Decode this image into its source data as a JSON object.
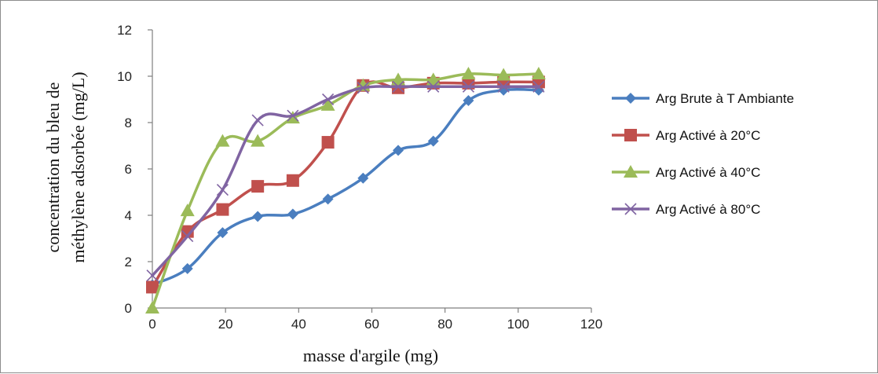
{
  "chart_data": {
    "type": "line",
    "title": "",
    "xlabel": "masse d'argile (mg)",
    "ylabel_line1": "concentration du bleu de",
    "ylabel_line2": "méthylène adsorbée (mg/L)",
    "xlim": [
      0,
      120
    ],
    "ylim": [
      0,
      12
    ],
    "xticks": [
      "0",
      "20",
      "40",
      "60",
      "80",
      "100",
      "120"
    ],
    "yticks": [
      "0",
      "2",
      "4",
      "6",
      "8",
      "10",
      "12"
    ],
    "grid": false,
    "smooth": true,
    "legend_position": "right",
    "series": [
      {
        "name": "Arg Brute à T Ambiante",
        "color": "#4a7ebf",
        "marker": "diamond",
        "x": [
          0,
          9.6,
          19.2,
          28.8,
          38.4,
          48,
          57.6,
          67.2,
          76.8,
          86.4,
          96,
          105.6
        ],
        "y": [
          1.0,
          1.7,
          3.25,
          3.95,
          4.05,
          4.7,
          5.6,
          6.8,
          7.2,
          8.95,
          9.4,
          9.4
        ]
      },
      {
        "name": "Arg Activé à 20°C",
        "color": "#c0504d",
        "marker": "square",
        "x": [
          0,
          9.6,
          19.2,
          28.8,
          38.4,
          48,
          57.6,
          67.2,
          76.8,
          86.4,
          96,
          105.6
        ],
        "y": [
          0.9,
          3.3,
          4.25,
          5.25,
          5.5,
          7.15,
          9.6,
          9.5,
          9.7,
          9.7,
          9.75,
          9.75
        ]
      },
      {
        "name": "Arg Activé à 40°C",
        "color": "#9bbb59",
        "marker": "triangle",
        "x": [
          0,
          9.6,
          19.2,
          28.8,
          38.4,
          48,
          57.6,
          67.2,
          76.8,
          86.4,
          96,
          105.6
        ],
        "y": [
          0.0,
          4.2,
          7.2,
          7.2,
          8.2,
          8.75,
          9.6,
          9.85,
          9.85,
          10.1,
          10.05,
          10.1
        ]
      },
      {
        "name": "Arg Activé à 80°C",
        "color": "#8064a2",
        "marker": "x",
        "x": [
          0,
          9.6,
          19.2,
          28.8,
          38.4,
          48,
          57.6,
          67.2,
          76.8,
          86.4,
          96,
          105.6
        ],
        "y": [
          1.4,
          3.1,
          5.1,
          8.1,
          8.3,
          9.0,
          9.5,
          9.55,
          9.55,
          9.55,
          9.55,
          9.55
        ]
      }
    ]
  }
}
